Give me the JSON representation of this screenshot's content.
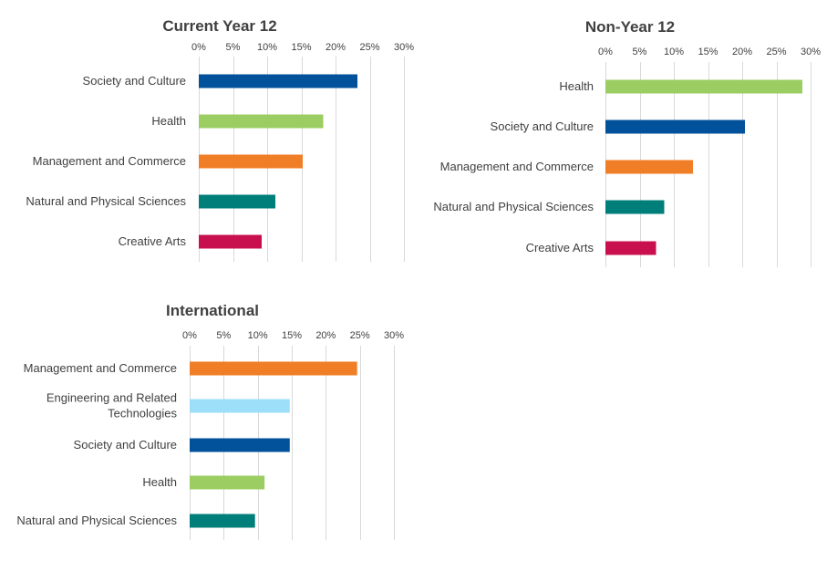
{
  "chart_data": [
    {
      "type": "bar",
      "orientation": "horizontal",
      "title": "Current Year 12",
      "xlim": [
        0,
        30
      ],
      "ticks": [
        "0%",
        "5%",
        "10%",
        "15%",
        "20%",
        "25%",
        "30%"
      ],
      "tick_values": [
        0,
        5,
        10,
        15,
        20,
        25,
        30
      ],
      "grid": true,
      "categories": [
        [
          "Society and Culture"
        ],
        [
          "Health"
        ],
        [
          "Management and Commerce"
        ],
        [
          "Natural and Physical Sciences"
        ],
        [
          "Creative Arts"
        ]
      ],
      "values": [
        23.2,
        18.2,
        15.2,
        11.2,
        9.2
      ],
      "colors": [
        "#02519b",
        "#9ccd63",
        "#f07e26",
        "#007e7a",
        "#c8104f"
      ]
    },
    {
      "type": "bar",
      "orientation": "horizontal",
      "title": "Non-Year 12",
      "xlim": [
        0,
        30
      ],
      "ticks": [
        "0%",
        "5%",
        "10%",
        "15%",
        "20%",
        "25%",
        "30%"
      ],
      "tick_values": [
        0,
        5,
        10,
        15,
        20,
        25,
        30
      ],
      "grid": true,
      "categories": [
        [
          "Health"
        ],
        [
          "Society and Culture"
        ],
        [
          "Management and Commerce"
        ],
        [
          "Natural and Physical Sciences"
        ],
        [
          "Creative Arts"
        ]
      ],
      "values": [
        28.8,
        20.4,
        12.8,
        8.6,
        7.4
      ],
      "colors": [
        "#9ccd63",
        "#02519b",
        "#f07e26",
        "#007e7a",
        "#c8104f"
      ]
    },
    {
      "type": "bar",
      "orientation": "horizontal",
      "title": "International",
      "xlim": [
        0,
        30
      ],
      "ticks": [
        "0%",
        "5%",
        "10%",
        "15%",
        "20%",
        "25%",
        "30%"
      ],
      "tick_values": [
        0,
        5,
        10,
        15,
        20,
        25,
        30
      ],
      "grid": true,
      "categories": [
        [
          "Management and Commerce"
        ],
        [
          "Engineering and Related",
          "Technologies"
        ],
        [
          "Society and Culture"
        ],
        [
          "Health"
        ],
        [
          "Natural and Physical Sciences"
        ]
      ],
      "values": [
        24.6,
        14.7,
        14.7,
        11.0,
        9.6
      ],
      "colors": [
        "#f07e26",
        "#9ddff8",
        "#02519b",
        "#9ccd63",
        "#007e7a"
      ]
    }
  ]
}
